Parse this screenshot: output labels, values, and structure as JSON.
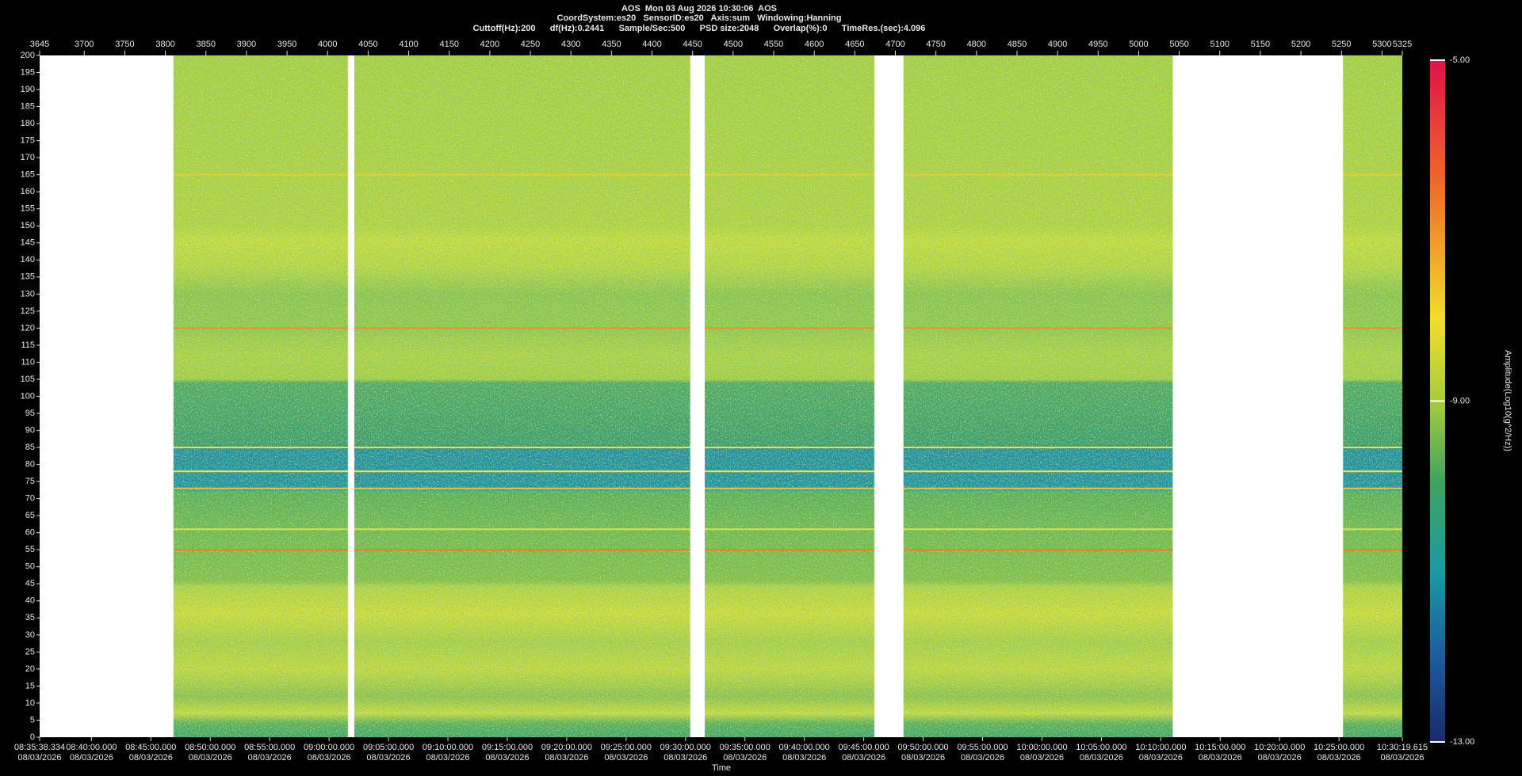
{
  "chart_data": {
    "type": "spectrogram",
    "title": "AOS  Mon 03 Aug 2026 10:30:06  AOS",
    "subtitle": [
      "CoordSystem:es20   SensorID:es20   Axis:sum   Windowing:Hanning",
      "Cuttoff(Hz):200      df(Hz):0.2441      Sample/Sec:500      PSD size:2048      Overlap(%):0      TimeRes.(sec):4.096"
    ],
    "xlabel": "Time",
    "xlim": [
      3645,
      5325
    ],
    "xticks": [
      3645,
      3700,
      3750,
      3800,
      3850,
      3900,
      3950,
      4000,
      4050,
      4100,
      4150,
      4200,
      4250,
      4300,
      4350,
      4400,
      4450,
      4500,
      4550,
      4600,
      4650,
      4700,
      4750,
      4800,
      4850,
      4900,
      4950,
      5000,
      5050,
      5100,
      5150,
      5200,
      5250,
      5300,
      5325
    ],
    "x2lim": [
      30938.334,
      37819.615
    ],
    "x2ticks": [
      {
        "value": 30938.334,
        "label": "08:35:38.334",
        "date": "08/03/2026"
      },
      {
        "value": 31200,
        "label": "08:40:00.000",
        "date": "08/03/2026"
      },
      {
        "value": 31500,
        "label": "08:45:00.000",
        "date": "08/03/2026"
      },
      {
        "value": 31800,
        "label": "08:50:00.000",
        "date": "08/03/2026"
      },
      {
        "value": 32100,
        "label": "08:55:00.000",
        "date": "08/03/2026"
      },
      {
        "value": 32400,
        "label": "09:00:00.000",
        "date": "08/03/2026"
      },
      {
        "value": 32700,
        "label": "09:05:00.000",
        "date": "08/03/2026"
      },
      {
        "value": 33000,
        "label": "09:10:00.000",
        "date": "08/03/2026"
      },
      {
        "value": 33300,
        "label": "09:15:00.000",
        "date": "08/03/2026"
      },
      {
        "value": 33600,
        "label": "09:20:00.000",
        "date": "08/03/2026"
      },
      {
        "value": 33900,
        "label": "09:25:00.000",
        "date": "08/03/2026"
      },
      {
        "value": 34200,
        "label": "09:30:00.000",
        "date": "08/03/2026"
      },
      {
        "value": 34500,
        "label": "09:35:00.000",
        "date": "08/03/2026"
      },
      {
        "value": 34800,
        "label": "09:40:00.000",
        "date": "08/03/2026"
      },
      {
        "value": 35100,
        "label": "09:45:00.000",
        "date": "08/03/2026"
      },
      {
        "value": 35400,
        "label": "09:50:00.000",
        "date": "08/03/2026"
      },
      {
        "value": 35700,
        "label": "09:55:00.000",
        "date": "08/03/2026"
      },
      {
        "value": 36000,
        "label": "10:00:00.000",
        "date": "08/03/2026"
      },
      {
        "value": 36300,
        "label": "10:05:00.000",
        "date": "08/03/2026"
      },
      {
        "value": 36600,
        "label": "10:10:00.000",
        "date": "08/03/2026"
      },
      {
        "value": 36900,
        "label": "10:15:00.000",
        "date": "08/03/2026"
      },
      {
        "value": 37200,
        "label": "10:20:00.000",
        "date": "08/03/2026"
      },
      {
        "value": 37500,
        "label": "10:25:00.000",
        "date": "08/03/2026"
      },
      {
        "value": 37819.615,
        "label": "10:30:19.615",
        "date": "08/03/2026"
      }
    ],
    "ylim": [
      0,
      200
    ],
    "yticks": [
      0,
      5,
      10,
      15,
      20,
      25,
      30,
      35,
      40,
      45,
      50,
      55,
      60,
      65,
      70,
      75,
      80,
      85,
      90,
      95,
      100,
      105,
      110,
      115,
      120,
      125,
      130,
      135,
      140,
      145,
      150,
      155,
      160,
      165,
      170,
      175,
      180,
      185,
      190,
      195,
      200
    ],
    "segments": [
      {
        "start": 3810,
        "end": 4025
      },
      {
        "start": 4033,
        "end": 4447
      },
      {
        "start": 4465,
        "end": 4674
      },
      {
        "start": 4710,
        "end": 5042
      },
      {
        "start": 5252,
        "end": 5325
      }
    ],
    "features": [
      {
        "value": 165,
        "color": "#e6d030"
      },
      {
        "value": 120,
        "color": "#e8902c"
      },
      {
        "value": 85,
        "color": "#f0e448"
      },
      {
        "value": 78,
        "color": "#f0e448"
      },
      {
        "value": 73,
        "color": "#e8c838"
      },
      {
        "value": 61,
        "color": "#e8e040"
      },
      {
        "value": 55,
        "color": "#e8801e"
      }
    ],
    "colorbar": {
      "label": "Amplitude(Log10(g^2/Hz))",
      "clim": [
        -13,
        -5
      ],
      "ticks": [
        {
          "value": -5,
          "label": "-5.00"
        },
        {
          "value": -9,
          "label": "-9.00"
        },
        {
          "value": -13,
          "label": "-13.00"
        }
      ]
    }
  }
}
